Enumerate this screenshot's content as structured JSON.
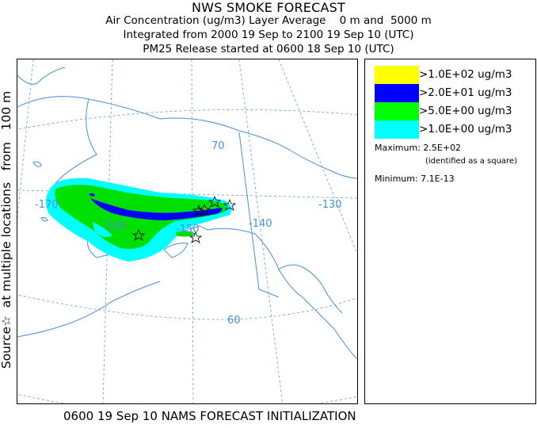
{
  "header": {
    "title": "NWS SMOKE FORECAST",
    "line2": "Air Concentration (ug/m3) Layer Average    0 m and  5000 m",
    "line3": "Integrated from 2000 19 Sep to 2100 19 Sep 10 (UTC)",
    "line4": "PM25 Release started at 0600 18 Sep 10 (UTC)"
  },
  "side_label": "Source☆  at multiple locations   from   100 m",
  "map": {
    "gridlabels": {
      "lon_m170": "-170",
      "lon_m160": "-160",
      "lon_m150": "-150",
      "lon_m140": "-140",
      "lon_m130": "-130",
      "lat_70": "70",
      "lat_60": "60"
    },
    "colors": {
      "coast": "#4a8fd8",
      "grid": "#5b9fe0"
    }
  },
  "legend": {
    "entries": [
      {
        "label": ">1.0E+02 ug/m3",
        "color": "#ffff00"
      },
      {
        "label": ">2.0E+01 ug/m3",
        "color": "#0000ff"
      },
      {
        "label": ">5.0E+00 ug/m3",
        "color": "#00ff00"
      },
      {
        "label": ">1.0E+00 ug/m3",
        "color": "#00ffff"
      }
    ],
    "maximum": "Maximum: 2.5E+02",
    "maximum_note": "(identified as a square)",
    "minimum": "Minimum: 7.1E-13"
  },
  "footer": "0600 19 Sep 10 NAMS FORECAST INITIALIZATION"
}
